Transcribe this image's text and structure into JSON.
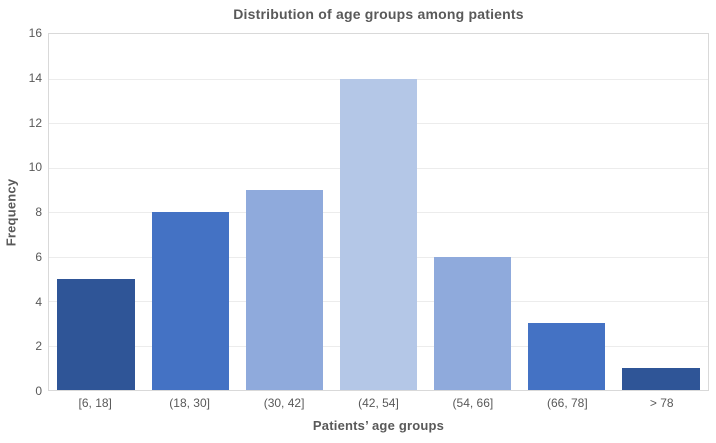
{
  "chart_data": {
    "type": "bar",
    "title": "Distribution of age groups among patients",
    "xlabel": "Patients’ age groups",
    "ylabel": "Frequency",
    "categories": [
      "[6, 18]",
      "(18, 30]",
      "(30, 42]",
      "(42, 54]",
      "(54, 66]",
      "(66, 78]",
      "> 78"
    ],
    "values": [
      5,
      8,
      9,
      14,
      6,
      3,
      1
    ],
    "bar_colors": [
      "#2F5597",
      "#4472C4",
      "#8FAADC",
      "#B4C7E7",
      "#8FAADC",
      "#4472C4",
      "#2F5597"
    ],
    "ylim": [
      0,
      16
    ],
    "yticks": [
      0,
      2,
      4,
      6,
      8,
      10,
      12,
      14,
      16
    ],
    "grid": "horizontal",
    "legend": "none",
    "colors": {
      "text": "#595959",
      "gridline": "#ececec",
      "plot_border": "#d9d9d9",
      "background": "#ffffff"
    }
  }
}
